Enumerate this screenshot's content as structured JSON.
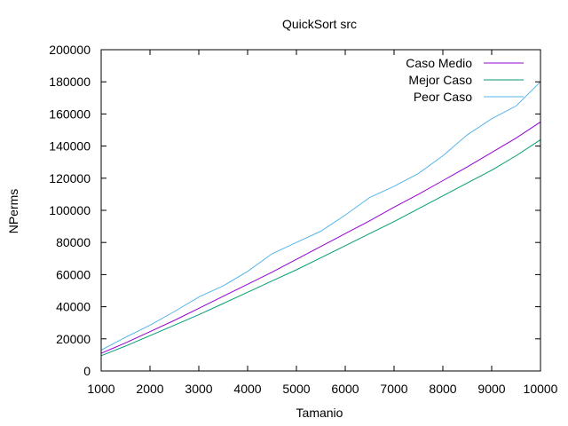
{
  "chart_data": {
    "type": "line",
    "title": "QuickSort src",
    "xlabel": "Tamanio",
    "ylabel": "NPerms",
    "xlim": [
      1000,
      10000
    ],
    "ylim": [
      0,
      200000
    ],
    "x_ticks": [
      1000,
      2000,
      3000,
      4000,
      5000,
      6000,
      7000,
      8000,
      9000,
      10000
    ],
    "y_ticks": [
      0,
      20000,
      40000,
      60000,
      80000,
      100000,
      120000,
      140000,
      160000,
      180000,
      200000
    ],
    "legend_position": "top-right",
    "grid": false,
    "series": [
      {
        "name": "Caso Medio",
        "color": "#9400d3",
        "x": [
          1000,
          1500,
          2000,
          2500,
          3000,
          3500,
          4000,
          4500,
          5000,
          5500,
          6000,
          6500,
          7000,
          7500,
          8000,
          8500,
          9000,
          9500,
          10000
        ],
        "y": [
          11000,
          17500,
          24500,
          31500,
          39000,
          46500,
          54000,
          61500,
          69500,
          77500,
          85500,
          93500,
          102000,
          110000,
          118500,
          127000,
          136000,
          145000,
          155000
        ]
      },
      {
        "name": "Mejor Caso",
        "color": "#009e73",
        "x": [
          1000,
          1500,
          2000,
          2500,
          3000,
          3500,
          4000,
          4500,
          5000,
          5500,
          6000,
          6500,
          7000,
          7500,
          8000,
          8500,
          9000,
          9500,
          10000
        ],
        "y": [
          9500,
          15500,
          22000,
          28500,
          35000,
          42000,
          49000,
          56000,
          63000,
          70500,
          78000,
          85500,
          93000,
          101000,
          109000,
          117000,
          125000,
          134000,
          144000
        ]
      },
      {
        "name": "Peor Caso",
        "color": "#56b4e9",
        "x": [
          1000,
          1500,
          2000,
          2500,
          3000,
          3500,
          4000,
          4500,
          5000,
          5500,
          6000,
          6500,
          7000,
          7500,
          8000,
          8500,
          9000,
          9500,
          10000
        ],
        "y": [
          13000,
          21000,
          28500,
          37000,
          46000,
          53000,
          62000,
          73000,
          80000,
          87000,
          97000,
          108000,
          115000,
          123000,
          134000,
          147000,
          157000,
          165000,
          180000
        ]
      }
    ]
  }
}
